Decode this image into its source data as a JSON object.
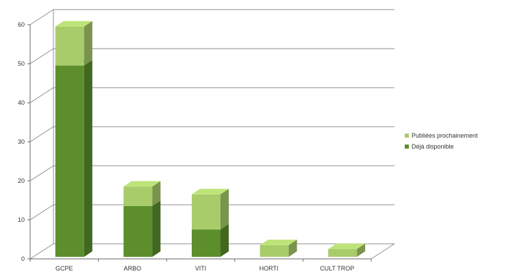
{
  "chart_data": {
    "type": "bar",
    "stacked": true,
    "three_d": true,
    "categories": [
      "GCPE",
      "ARBO",
      "VITI",
      "HORTI",
      "CULT TROP"
    ],
    "series": [
      {
        "name": "Déjà disponible",
        "values": [
          49,
          13,
          7,
          0,
          0
        ],
        "color": "#5c8f2c"
      },
      {
        "name": "Publiées prochainement",
        "values": [
          10,
          5,
          9,
          3,
          2
        ],
        "color": "#a9cc6b"
      }
    ],
    "ylim": [
      0,
      60
    ],
    "yticks": [
      "0",
      "10",
      "20",
      "30",
      "40",
      "50",
      "60"
    ],
    "grid": true,
    "legend_position": "right"
  }
}
